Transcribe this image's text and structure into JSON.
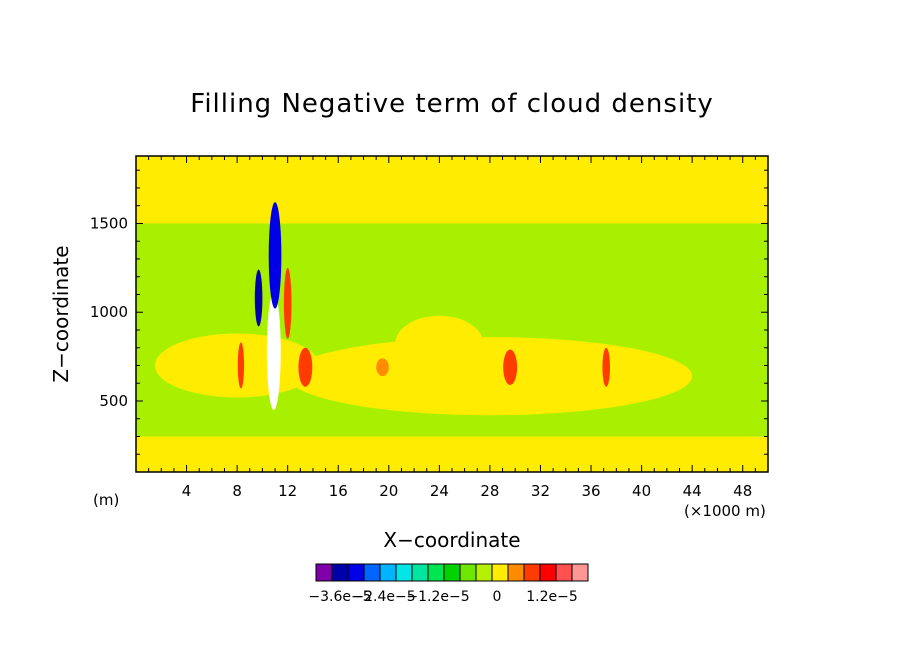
{
  "chart_data": {
    "type": "heatmap",
    "title": "Filling Negative term of cloud density",
    "xlabel": "X−coordinate",
    "ylabel": "Z−coordinate",
    "x_unit_label": "(×1000 m)",
    "y_unit_label": "(m)",
    "xlim": [
      0,
      50
    ],
    "ylim": [
      100,
      1880
    ],
    "x_ticks": [
      "4",
      "8",
      "12",
      "16",
      "20",
      "24",
      "28",
      "32",
      "36",
      "40",
      "44",
      "48"
    ],
    "y_ticks": [
      "500",
      "1000",
      "1500"
    ],
    "background_level": "0",
    "colorbar": {
      "colors": [
        "#7f00a8",
        "#0000a8",
        "#0000e6",
        "#0064ff",
        "#00b4ff",
        "#00e6e6",
        "#00e6a0",
        "#00e650",
        "#00d200",
        "#6ee600",
        "#b4f000",
        "#ffec00",
        "#ff8c00",
        "#ff3c00",
        "#ff0000",
        "#ff5050",
        "#ff9696"
      ],
      "labels": [
        "−3.6e−5",
        "−2.4e−5",
        "−1.2e−5",
        "0",
        "1.2e−5"
      ]
    },
    "regions": [
      {
        "level": "light-green",
        "color": "#a8f000",
        "shape": "band",
        "x": [
          0,
          50
        ],
        "z": [
          300,
          1500
        ]
      },
      {
        "level": "zero",
        "color": "#ffec00",
        "shape": "ellipse",
        "center": [
          8,
          700
        ],
        "radius": [
          6.5,
          180
        ]
      },
      {
        "level": "zero",
        "color": "#ffec00",
        "shape": "ellipse",
        "center": [
          28,
          640
        ],
        "radius": [
          16,
          220
        ]
      },
      {
        "level": "zero",
        "color": "#ffec00",
        "shape": "ellipse",
        "center": [
          24,
          820
        ],
        "radius": [
          3.5,
          160
        ]
      },
      {
        "level": "minimum",
        "color": "#ffffff",
        "shape": "ellipse",
        "center": [
          10.9,
          780
        ],
        "radius": [
          0.55,
          330
        ]
      },
      {
        "level": "negative",
        "color": "#0000e6",
        "shape": "ellipse",
        "center": [
          11.0,
          1320
        ],
        "radius": [
          0.5,
          300
        ]
      },
      {
        "level": "negative",
        "color": "#0000a8",
        "shape": "ellipse",
        "center": [
          9.7,
          1080
        ],
        "radius": [
          0.3,
          160
        ]
      },
      {
        "level": "positive",
        "color": "#ff3c00",
        "shape": "ellipse",
        "center": [
          13.4,
          690
        ],
        "radius": [
          0.55,
          110
        ]
      },
      {
        "level": "positive",
        "color": "#ff8c00",
        "shape": "ellipse",
        "center": [
          19.5,
          690
        ],
        "radius": [
          0.5,
          50
        ]
      },
      {
        "level": "positive",
        "color": "#ff3c00",
        "shape": "ellipse",
        "center": [
          29.6,
          690
        ],
        "radius": [
          0.55,
          100
        ]
      },
      {
        "level": "positive",
        "color": "#ff3c00",
        "shape": "ellipse",
        "center": [
          37.2,
          690
        ],
        "radius": [
          0.3,
          110
        ]
      },
      {
        "level": "positive",
        "color": "#ff3c00",
        "shape": "ellipse",
        "center": [
          8.3,
          700
        ],
        "radius": [
          0.25,
          130
        ]
      },
      {
        "level": "positive",
        "color": "#ff3c00",
        "shape": "ellipse",
        "center": [
          12.0,
          1050
        ],
        "radius": [
          0.3,
          200
        ]
      }
    ]
  }
}
